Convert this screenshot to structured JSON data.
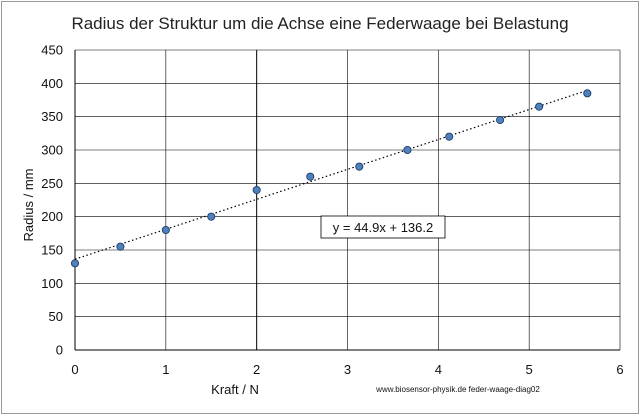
{
  "chart_data": {
    "type": "scatter",
    "title": "Radius der Struktur um die Achse eine Federwaage bei Belastung",
    "xlabel": "Kraft / N",
    "ylabel": "Radius / mm",
    "xlim": [
      0,
      6
    ],
    "ylim": [
      0,
      450
    ],
    "xticks": [
      "0",
      "1",
      "2",
      "3",
      "4",
      "5",
      "6"
    ],
    "yticks": [
      "0",
      "50",
      "100",
      "150",
      "200",
      "250",
      "300",
      "350",
      "400",
      "450"
    ],
    "grid": true,
    "highlight_x": 2,
    "points": [
      {
        "x": 0,
        "y": 130
      },
      {
        "x": 0.5,
        "y": 155
      },
      {
        "x": 1.0,
        "y": 180
      },
      {
        "x": 1.5,
        "y": 200
      },
      {
        "x": 2.0,
        "y": 240
      },
      {
        "x": 2.59,
        "y": 260
      },
      {
        "x": 3.13,
        "y": 275
      },
      {
        "x": 3.66,
        "y": 300
      },
      {
        "x": 4.12,
        "y": 320
      },
      {
        "x": 4.68,
        "y": 345
      },
      {
        "x": 5.11,
        "y": 365
      },
      {
        "x": 5.64,
        "y": 385
      }
    ],
    "trendline": {
      "equation": "y = 44.9x + 136.2",
      "slope": 44.9,
      "intercept": 136.2
    },
    "credit": "www.biosensor-physik.de  feder-waage-diag02",
    "colors": {
      "marker_fill": "#4f81bd",
      "marker_stroke": "#1f3b66",
      "grid": "#000000",
      "frame": "#999999"
    }
  }
}
